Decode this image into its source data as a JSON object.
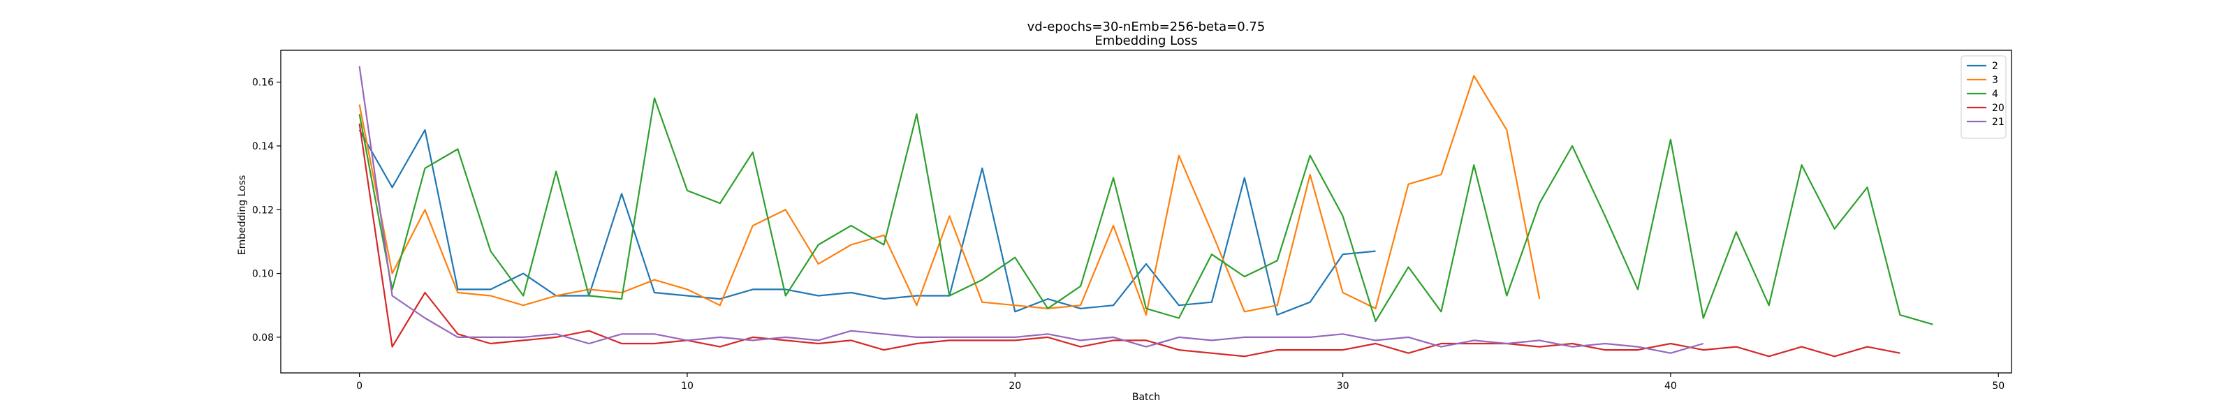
{
  "chart_data": {
    "type": "line",
    "title": "vd-epochs=30-nEmb=256-beta=0.75",
    "subtitle": "Embedding Loss",
    "xlabel": "Batch",
    "ylabel": "Embedding Loss",
    "xlim": [
      -2.4,
      50.4
    ],
    "ylim": [
      0.0688,
      0.17
    ],
    "xticks": [
      0,
      10,
      20,
      30,
      40,
      50
    ],
    "yticks": [
      0.08,
      0.1,
      0.12,
      0.14,
      0.16
    ],
    "xtick_labels": [
      "0",
      "10",
      "20",
      "30",
      "40",
      "50"
    ],
    "ytick_labels": [
      "0.08",
      "0.10",
      "0.12",
      "0.14",
      "0.16"
    ],
    "grid": false,
    "legend_position": "top-right",
    "series": [
      {
        "name": "2",
        "color": "#1f77b4",
        "x": [
          0,
          1,
          2,
          3,
          4,
          5,
          6,
          7,
          8,
          9,
          10,
          11,
          12,
          13,
          14,
          15,
          16,
          17,
          18,
          19,
          20,
          21,
          22,
          23,
          24,
          25,
          26,
          27,
          28,
          29,
          30,
          31
        ],
        "values": [
          0.145,
          0.127,
          0.145,
          0.095,
          0.095,
          0.1,
          0.093,
          0.093,
          0.125,
          0.094,
          0.093,
          0.092,
          0.095,
          0.095,
          0.093,
          0.094,
          0.092,
          0.093,
          0.093,
          0.133,
          0.088,
          0.092,
          0.089,
          0.09,
          0.103,
          0.09,
          0.091,
          0.13,
          0.087,
          0.091,
          0.106,
          0.107
        ]
      },
      {
        "name": "3",
        "color": "#ff7f0e",
        "x": [
          0,
          1,
          2,
          3,
          4,
          5,
          6,
          7,
          8,
          9,
          10,
          11,
          12,
          13,
          14,
          15,
          16,
          17,
          18,
          19,
          20,
          21,
          22,
          23,
          24,
          25,
          26,
          27,
          28,
          29,
          30,
          31,
          32,
          33,
          34,
          35,
          36
        ],
        "values": [
          0.153,
          0.1,
          0.12,
          0.094,
          0.093,
          0.09,
          0.093,
          0.095,
          0.094,
          0.098,
          0.095,
          0.09,
          0.115,
          0.12,
          0.103,
          0.109,
          0.112,
          0.09,
          0.118,
          0.091,
          0.09,
          0.089,
          0.09,
          0.115,
          0.087,
          0.137,
          0.113,
          0.088,
          0.09,
          0.131,
          0.094,
          0.089,
          0.128,
          0.131,
          0.162,
          0.145,
          0.092
        ]
      },
      {
        "name": "4",
        "color": "#2ca02c",
        "x": [
          0,
          1,
          2,
          3,
          4,
          5,
          6,
          7,
          8,
          9,
          10,
          11,
          12,
          13,
          14,
          15,
          16,
          17,
          18,
          19,
          20,
          21,
          22,
          23,
          24,
          25,
          26,
          27,
          28,
          29,
          30,
          31,
          32,
          33,
          34,
          35,
          36,
          37,
          38,
          39,
          40,
          41,
          42,
          43,
          44,
          45,
          46,
          47,
          48
        ],
        "values": [
          0.15,
          0.095,
          0.133,
          0.139,
          0.107,
          0.093,
          0.132,
          0.093,
          0.092,
          0.155,
          0.126,
          0.122,
          0.138,
          0.093,
          0.109,
          0.115,
          0.109,
          0.15,
          0.093,
          0.098,
          0.105,
          0.089,
          0.096,
          0.13,
          0.089,
          0.086,
          0.106,
          0.099,
          0.104,
          0.137,
          0.118,
          0.085,
          0.102,
          0.088,
          0.134,
          0.093,
          0.122,
          0.14,
          0.118,
          0.095,
          0.142,
          0.086,
          0.113,
          0.09,
          0.134,
          0.114,
          0.127,
          0.087,
          0.084
        ]
      },
      {
        "name": "20",
        "color": "#d62728",
        "x": [
          0,
          1,
          2,
          3,
          4,
          5,
          6,
          7,
          8,
          9,
          10,
          11,
          12,
          13,
          14,
          15,
          16,
          17,
          18,
          19,
          20,
          21,
          22,
          23,
          24,
          25,
          26,
          27,
          28,
          29,
          30,
          31,
          32,
          33,
          34,
          35,
          36,
          37,
          38,
          39,
          40,
          41,
          42,
          43,
          44,
          45,
          46,
          47
        ],
        "values": [
          0.147,
          0.077,
          0.094,
          0.081,
          0.078,
          0.079,
          0.08,
          0.082,
          0.078,
          0.078,
          0.079,
          0.077,
          0.08,
          0.079,
          0.078,
          0.079,
          0.076,
          0.078,
          0.079,
          0.079,
          0.079,
          0.08,
          0.077,
          0.079,
          0.079,
          0.076,
          0.075,
          0.074,
          0.076,
          0.076,
          0.076,
          0.078,
          0.075,
          0.078,
          0.078,
          0.078,
          0.077,
          0.078,
          0.076,
          0.076,
          0.078,
          0.076,
          0.077,
          0.074,
          0.077,
          0.074,
          0.077,
          0.075
        ]
      },
      {
        "name": "21",
        "color": "#9467bd",
        "x": [
          0,
          1,
          2,
          3,
          4,
          5,
          6,
          7,
          8,
          9,
          10,
          11,
          12,
          13,
          14,
          15,
          16,
          17,
          18,
          19,
          20,
          21,
          22,
          23,
          24,
          25,
          26,
          27,
          28,
          29,
          30,
          31,
          32,
          33,
          34,
          35,
          36,
          37,
          38,
          39,
          40,
          41
        ],
        "values": [
          0.165,
          0.093,
          0.086,
          0.08,
          0.08,
          0.08,
          0.081,
          0.078,
          0.081,
          0.081,
          0.079,
          0.08,
          0.079,
          0.08,
          0.079,
          0.082,
          0.081,
          0.08,
          0.08,
          0.08,
          0.08,
          0.081,
          0.079,
          0.08,
          0.077,
          0.08,
          0.079,
          0.08,
          0.08,
          0.08,
          0.081,
          0.079,
          0.08,
          0.077,
          0.079,
          0.078,
          0.079,
          0.077,
          0.078,
          0.077,
          0.075,
          0.078
        ]
      }
    ]
  }
}
